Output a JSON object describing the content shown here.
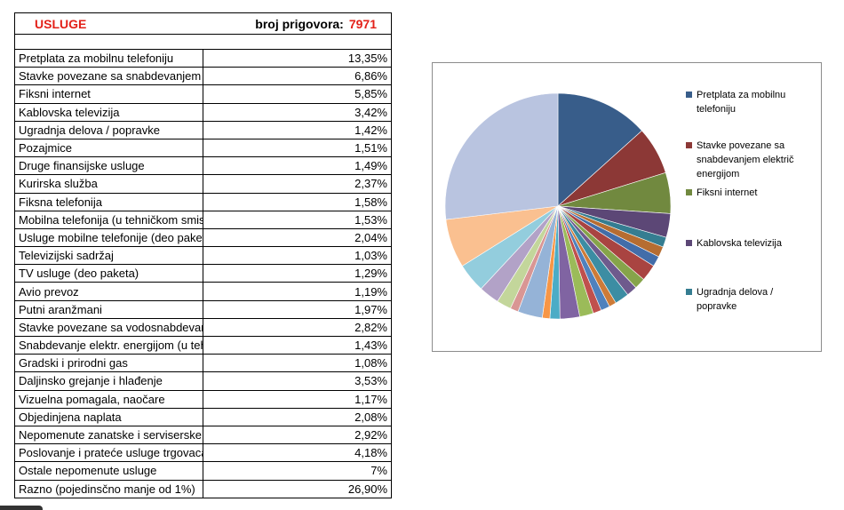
{
  "header": {
    "title": "USLUGE",
    "count_label": "broj prigovora:",
    "count_value": "7971"
  },
  "rows": [
    {
      "label": "Pretplata za mobilnu telefoniju",
      "value": "13,35%"
    },
    {
      "label": "Stavke povezane sa snabdevanjem električ energijom",
      "value": "6,86%"
    },
    {
      "label": "Fiksni internet",
      "value": "5,85%"
    },
    {
      "label": "Kablovska televizija",
      "value": "3,42%"
    },
    {
      "label": "Ugradnja delova / popravke",
      "value": "1,42%"
    },
    {
      "label": "Pozajmice",
      "value": "1,51%"
    },
    {
      "label": "Druge finansijske usluge",
      "value": "1,49%"
    },
    {
      "label": "Kurirska služba",
      "value": "2,37%"
    },
    {
      "label": "Fiksna telefonija",
      "value": "1,58%"
    },
    {
      "label": "Mobilna telefonija (u tehničkom smislu)",
      "value": "1,53%"
    },
    {
      "label": "Usluge mobilne telefonije (deo paketa)",
      "value": "2,04%"
    },
    {
      "label": "Televizijski sadržaj",
      "value": "1,03%"
    },
    {
      "label": "TV usluge (deo paketa)",
      "value": "1,29%"
    },
    {
      "label": "Avio prevoz",
      "value": "1,19%"
    },
    {
      "label": "Putni aranžmani",
      "value": "1,97%"
    },
    {
      "label": "Stavke povezane sa vodosnabdevanjem",
      "value": "2,82%"
    },
    {
      "label": "Snabdevanje elektr. energijom (u tehničkom smislu)",
      "value": "1,43%"
    },
    {
      "label": "Gradski i prirodni gas",
      "value": "1,08%"
    },
    {
      "label": "Daljinsko grejanje i hlađenje",
      "value": "3,53%"
    },
    {
      "label": "Vizuelna pomagala, naočare",
      "value": "1,17%"
    },
    {
      "label": "Objedinjena naplata",
      "value": "2,08%"
    },
    {
      "label": "Nepomenute zanatske i serviserske usluge",
      "value": "2,92%"
    },
    {
      "label": "Poslovanje i prateće usluge trgovaca",
      "value": "4,18%"
    },
    {
      "label": "Ostale nepomenute usluge",
      "value": "7%"
    },
    {
      "label": "Razno (pojedinsčno manje od 1%)",
      "value": "26,90%"
    }
  ],
  "chart_data": {
    "type": "pie",
    "title": "",
    "categories": [
      "Pretplata za mobilnu telefoniju",
      "Stavke povezane sa snabdevanjem električ energijom",
      "Fiksni internet",
      "Kablovska televizija",
      "Ugradnja delova / popravke",
      "Pozajmice",
      "Druge finansijske usluge",
      "Kurirska služba",
      "Fiksna telefonija",
      "Mobilna telefonija (u tehničkom smislu)",
      "Usluge mobilne telefonije (deo paketa)",
      "Televizijski sadržaj",
      "TV usluge (deo paketa)",
      "Avio prevoz",
      "Putni aranžmani",
      "Stavke povezane sa vodosnabdevanjem",
      "Snabdevanje elektr. energijom (u tehničkom smislu)",
      "Gradski i prirodni gas",
      "Daljinsko grejanje i hlađenje",
      "Vizuelna pomagala, naočare",
      "Objedinjena naplata",
      "Nepomenute zanatske i serviserske usluge",
      "Poslovanje i prateće usluge trgovaca",
      "Ostale nepomenute usluge",
      "Razno (pojedinsčno manje od 1%)"
    ],
    "values": [
      13.35,
      6.86,
      5.85,
      3.42,
      1.42,
      1.51,
      1.49,
      2.37,
      1.58,
      1.53,
      2.04,
      1.03,
      1.29,
      1.19,
      1.97,
      2.82,
      1.43,
      1.08,
      3.53,
      1.17,
      2.08,
      2.92,
      4.18,
      7.0,
      26.9
    ],
    "colors": [
      "#385d8a",
      "#8c3836",
      "#71893f",
      "#5c4776",
      "#357d91",
      "#b66d31",
      "#426da9",
      "#a94441",
      "#86a44a",
      "#6e5a8d",
      "#3c8da3",
      "#cd7b38",
      "#4f81bd",
      "#c0504d",
      "#9bbb59",
      "#8064a2",
      "#4bacc6",
      "#f79646",
      "#95b3d7",
      "#d99694",
      "#c3d69b",
      "#b2a2c7",
      "#93cddd",
      "#fac090",
      "#b9c4e0"
    ],
    "legend": {
      "position": "right",
      "visible_entries": [
        "Pretplata za mobilnu telefoniju",
        "Stavke povezane sa snabdevanjem električ energijom",
        "Fiksni internet",
        "Kablovska televizija",
        "Ugradnja delova / popravke"
      ],
      "wrapped_text": [
        [
          "Pretplata za mobilnu",
          "telefoniju"
        ],
        [
          "Stavke povezane sa",
          "snabdevanjem električ",
          "energijom"
        ],
        [
          "Fiksni internet"
        ],
        [
          "Kablovska televizija"
        ],
        [
          "Ugradnja delova /",
          "popravke"
        ]
      ]
    }
  }
}
